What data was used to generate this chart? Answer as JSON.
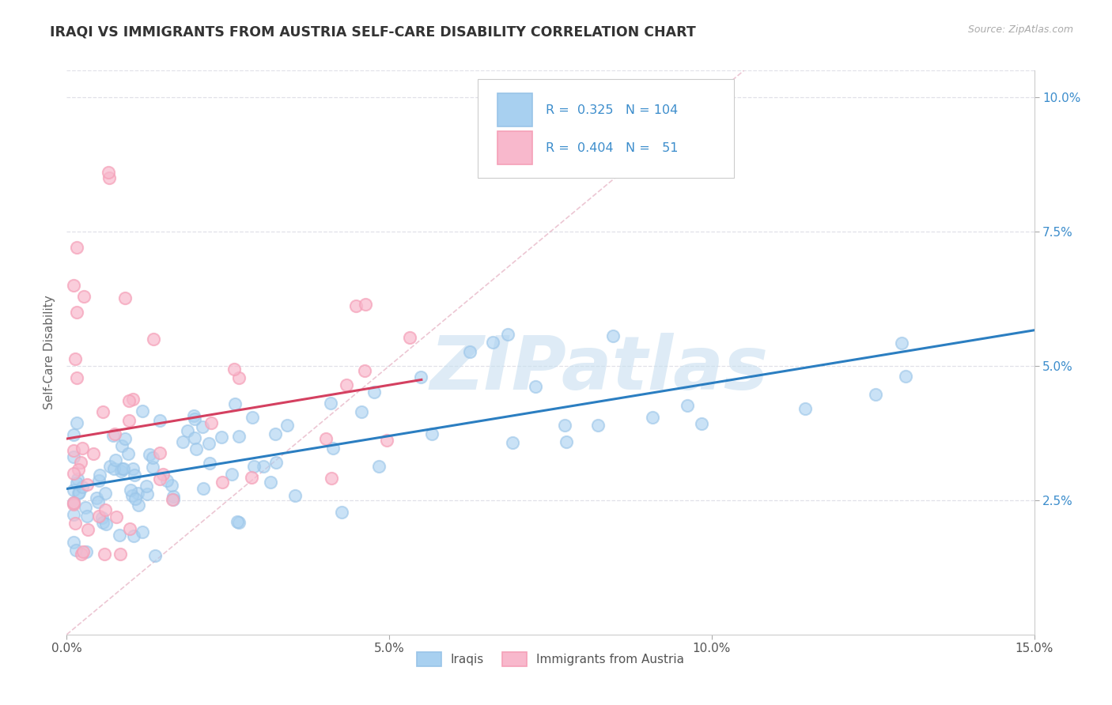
{
  "title": "IRAQI VS IMMIGRANTS FROM AUSTRIA SELF-CARE DISABILITY CORRELATION CHART",
  "source": "Source: ZipAtlas.com",
  "ylabel": "Self-Care Disability",
  "xlim": [
    0.0,
    0.15
  ],
  "ylim": [
    0.0,
    0.105
  ],
  "iraqi_color": "#99C4E8",
  "iraqi_color_fill": "#A8D0F0",
  "iraqi_color_line": "#2B7EC1",
  "austria_color": "#F5A0B8",
  "austria_color_fill": "#F8B8CC",
  "austria_color_line": "#D44060",
  "diag_line_color": "#E8B8C8",
  "legend_r_iraqis": "0.325",
  "legend_n_iraqis": "104",
  "legend_r_austria": "0.404",
  "legend_n_austria": "51",
  "watermark_text": "ZIPatlas",
  "watermark_color": "#C8DFF0",
  "background_color": "#ffffff",
  "grid_color": "#E0E0E8"
}
